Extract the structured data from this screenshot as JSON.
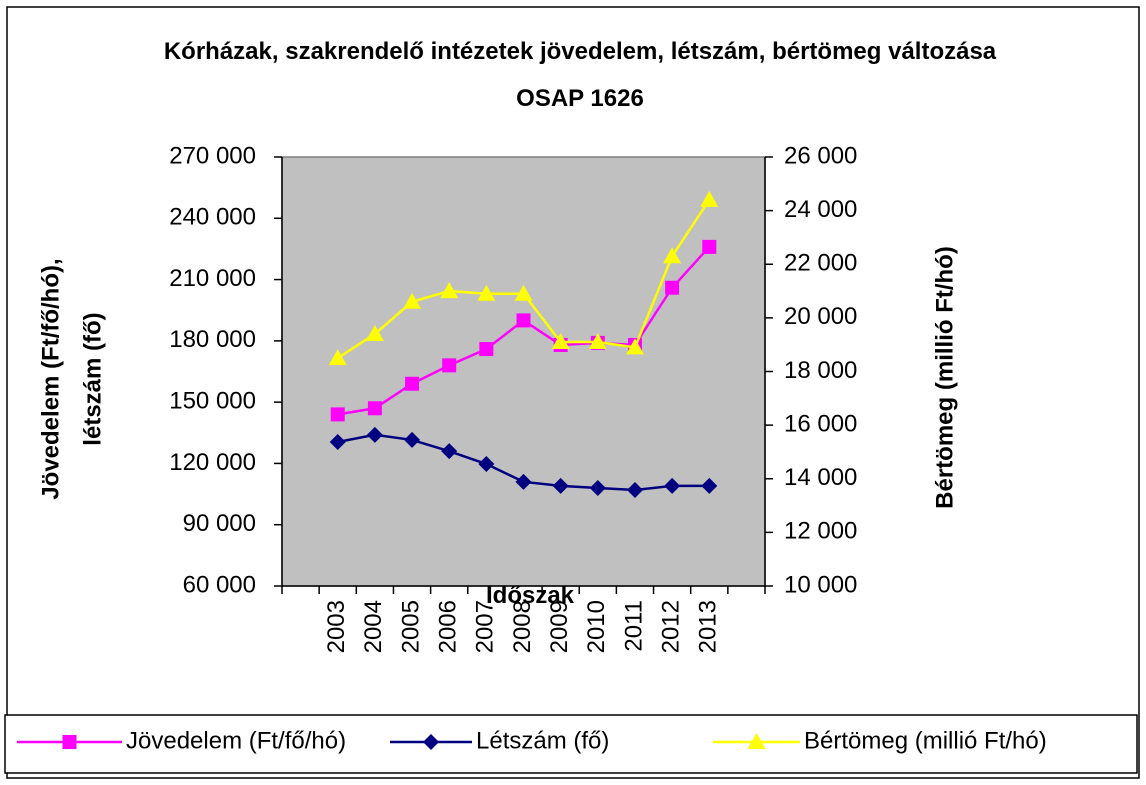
{
  "chart_data": {
    "type": "line",
    "title": "Kórházak, szakrendelő intézetek jövedelem, létszám, bértömeg változása OSAP 1626",
    "x_label": "Időszak",
    "y_label": "Jövedelem (Ft/fő/hó), létszám (fő)",
    "y2_label": "Bértömeg (millió Ft/hó)",
    "categories": [
      null,
      "2003",
      "2004",
      "2005",
      "2006",
      "2007",
      "2008",
      "2009",
      "2010",
      "2011",
      "2012",
      "2013"
    ],
    "series": [
      {
        "name": "Jövedelem (Ft/fő/hó)",
        "color": "#ff00ff",
        "marker": "square",
        "axis": "y",
        "values": [
          null,
          144000,
          147000,
          159000,
          168000,
          176000,
          190000,
          178000,
          179000,
          178000,
          206000,
          226000
        ]
      },
      {
        "name": "Létszám (fő)",
        "color": "#000080",
        "marker": "diamond",
        "axis": "y",
        "values": [
          null,
          130500,
          134000,
          131500,
          126000,
          119700,
          111000,
          109000,
          108000,
          107000,
          109000,
          109000
        ]
      },
      {
        "name": "Bértömeg (millió Ft/hó)",
        "color": "#ffff00",
        "marker": "triangle",
        "axis": "y2",
        "values": [
          null,
          18500,
          19400,
          20600,
          21000,
          20900,
          20900,
          19100,
          19100,
          18900,
          22300,
          24400
        ]
      }
    ],
    "ylim": [
      60000,
      270000
    ],
    "yticks": [
      {
        "value": 60000,
        "label": "60 000"
      },
      {
        "value": 90000,
        "label": "90 000"
      },
      {
        "value": 120000,
        "label": "120 000"
      },
      {
        "value": 150000,
        "label": "150 000"
      },
      {
        "value": 180000,
        "label": "180 000"
      },
      {
        "value": 210000,
        "label": "210 000"
      },
      {
        "value": 240000,
        "label": "240 000"
      },
      {
        "value": 270000,
        "label": "270 000"
      }
    ],
    "y2lim": [
      10000,
      26000
    ],
    "y2ticks": [
      {
        "value": 10000,
        "label": "10 000"
      },
      {
        "value": 12000,
        "label": "12 000"
      },
      {
        "value": 14000,
        "label": "14 000"
      },
      {
        "value": 16000,
        "label": "16 000"
      },
      {
        "value": 18000,
        "label": "18 000"
      },
      {
        "value": 20000,
        "label": "20 000"
      },
      {
        "value": 22000,
        "label": "22 000"
      },
      {
        "value": 24000,
        "label": "24 000"
      },
      {
        "value": 26000,
        "label": "26 000"
      }
    ],
    "grid": false,
    "legend": "bottom"
  }
}
